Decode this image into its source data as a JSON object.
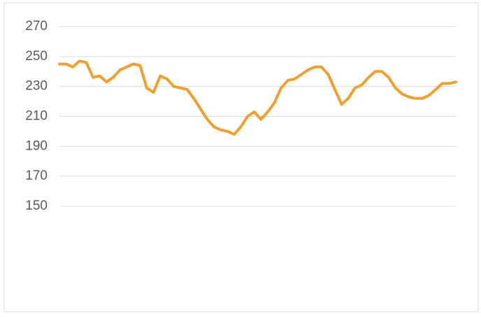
{
  "chart_data": {
    "type": "line",
    "categories": [
      null,
      null,
      null,
      null,
      null,
      null,
      null,
      null,
      null,
      null,
      null,
      null,
      null,
      null,
      null,
      null,
      null,
      null,
      null,
      null,
      null,
      null,
      null,
      null,
      null,
      null,
      null,
      null,
      null,
      null,
      null,
      null,
      null,
      null,
      null,
      null,
      null,
      null,
      null,
      null,
      null,
      null,
      null,
      null,
      null,
      null,
      null,
      null,
      null,
      null,
      null,
      null,
      null,
      null,
      null,
      null,
      null,
      null,
      null,
      null
    ],
    "series": [
      {
        "name": null,
        "color": "#f0a030",
        "values": [
          245,
          245,
          243,
          247,
          246,
          236,
          237,
          233,
          236,
          241,
          243,
          245,
          244,
          229,
          226,
          237,
          235,
          230,
          229,
          228,
          222,
          215,
          208,
          203,
          201,
          200,
          198,
          203,
          210,
          213,
          208,
          213,
          219,
          229,
          234,
          235,
          238,
          241,
          243,
          243,
          238,
          228,
          218,
          222,
          229,
          231,
          236,
          240,
          240,
          236,
          229,
          225,
          223,
          222,
          222,
          224,
          228,
          232,
          232,
          233
        ]
      }
    ],
    "ylim": [
      150,
      280
    ],
    "yticks": [
      150,
      170,
      190,
      210,
      230,
      250,
      270
    ],
    "grid": true
  }
}
